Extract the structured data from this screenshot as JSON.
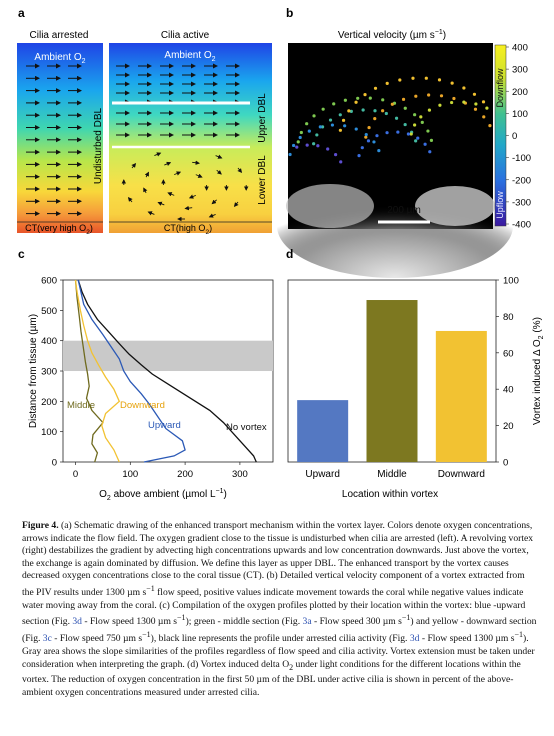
{
  "panel_a": {
    "letter": "a",
    "left_title": "Cilia arrested",
    "right_title": "Cilia active",
    "ambient_left": "Ambient O",
    "ambient_left_sub": "2",
    "ambient_right": "Ambient O",
    "ambient_right_sub": "2",
    "undisturbed_label": "Undisturbed DBL",
    "upper_label": "Upper DBL",
    "lower_label": "Lower DBL",
    "ct_left": "CT(very high O",
    "ct_left_sub": "2",
    "ct_left_end": ")",
    "ct_right": "CT(high O",
    "ct_right_sub": "2",
    "ct_right_end": ")"
  },
  "panel_b": {
    "letter": "b",
    "title": "Vertical velocity (µm s",
    "title_sup": "−1",
    "title_end": ")",
    "colorbar_ticks": [
      "400",
      "300",
      "200",
      "100",
      "0",
      "-100",
      "-200",
      "-300",
      "-400"
    ],
    "downflow_label": "Downflow",
    "upflow_label": "Upflow",
    "scale_label": "200 µm"
  },
  "panel_c": {
    "letter": "c",
    "ylabel": "Distance from tissue (µm)",
    "xlabel": "O",
    "xlabel_sub": "2",
    "xlabel_end": " above ambient (µmol L",
    "xlabel_sup": "−1",
    "xlabel_close": ")",
    "yticks": [
      "600",
      "500",
      "400",
      "300",
      "200",
      "100",
      "0"
    ],
    "xticks": [
      "0",
      "100",
      "200",
      "300"
    ],
    "labels": {
      "middle": "Middle",
      "downward": "Downward",
      "upward": "Upward",
      "novortex": "No vortex"
    },
    "colors": {
      "middle": "#6f6a1e",
      "downward": "#f2c232",
      "upward": "#2b59b6",
      "novortex": "#111111"
    },
    "gray_band": [
      300,
      400
    ]
  },
  "chart_data": {
    "type": "bar",
    "categories": [
      "Upward",
      "Middle",
      "Downward"
    ],
    "values": [
      34,
      89,
      72
    ],
    "colors": [
      "#5478c2",
      "#7d7820",
      "#f2c232"
    ],
    "ylim": [
      0,
      100
    ],
    "yticks": [
      "0",
      "20",
      "40",
      "60",
      "80",
      "100"
    ],
    "xlabel": "Location within vortex",
    "ylabel": "Vortex induced Δ O",
    "ylabel_sub": "2",
    "ylabel_end": " (%)"
  },
  "panel_d": {
    "letter": "d"
  },
  "caption": {
    "label": "Figure 4.",
    "p1": "(a) Schematic drawing of the enhanced transport mechanism within the vortex layer. Colors denote oxygen concentrations, arrows indicate the flow field. The oxygen gradient close to the tissue is undisturbed when cilia are arrested (left). A revolving vortex (right) destabilizes the gradient by advecting high concentrations upwards and low concentration downwards. Just above the vortex, the exchange is again dominated by diffusion. We define this layer as upper DBL. The enhanced transport by the vortex causes decreased oxygen concentrations close to the coral tissue (CT). (b) Detailed vertical velocity component of a vortex extracted from the PIV results under 1300 µm s",
    "p1_sup": "−1",
    "p2": " flow speed, positive values indicate movement towards the coral while negative values indicate water moving away from the coral. (c) Compilation of the oxygen profiles plotted by their location within the vortex: blue -upward section (Fig. ",
    "ref1": "3d",
    "p3": " - Flow speed 1300 µm s",
    "p3_sup": "−1",
    "p4": "); green - middle section (Fig. ",
    "ref2": "3a",
    "p5": " - Flow speed 300 µm s",
    "p5_sup": "−1",
    "p6": ") and yellow - downward section (Fig. ",
    "ref3": "3c",
    "p7": " - Flow speed 750 µm s",
    "p7_sup": "−1",
    "p8": "), black line represents the profile under arrested cilia activity (Fig. ",
    "ref4": "3d",
    "p9": " - Flow speed 1300 µm s",
    "p9_sup": "−1",
    "p10": "). Gray area shows the slope similarities of the profiles regardless of flow speed and cilia activity. Vortex extension must be taken under consideration when interpreting the graph. (d) Vortex induced delta O",
    "p10_sub": "2",
    "p11": " under light conditions for the different locations within the vortex. The reduction of oxygen concentration in the first 50 µm of the DBL under active cilia is shown in percent of the above-ambient oxygen concentrations measured under arrested cilia."
  }
}
